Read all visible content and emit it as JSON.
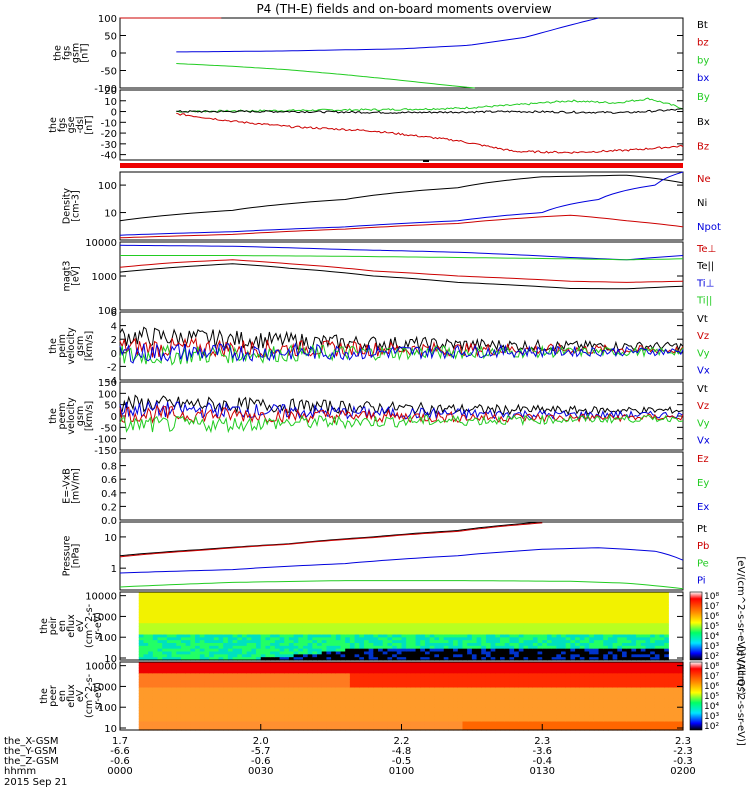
{
  "title": "P4 (TH-E) fields and on-board moments overview",
  "colors": {
    "black": "#000000",
    "red": "#cc0000",
    "green": "#22cc22",
    "blue": "#0000dd"
  },
  "chart_data": [
    {
      "id": "fgs_gsm",
      "type": "line",
      "ylabel": [
        "the",
        "fgs",
        "gsm",
        "[nT]"
      ],
      "ylim": [
        -100,
        100
      ],
      "yscale": "linear",
      "ticks": [
        "100",
        "50",
        "0",
        "-50",
        "-100"
      ],
      "tick_values": [
        100,
        50,
        0,
        -50,
        -100
      ],
      "legend": [
        {
          "label": "Bt",
          "color": "black"
        },
        {
          "label": "bz",
          "color": "red"
        },
        {
          "label": "by",
          "color": "green"
        },
        {
          "label": "bx",
          "color": "blue"
        }
      ],
      "series": [
        {
          "name": "bz",
          "color": "red",
          "x": [
            0,
            0.1,
            0.18
          ],
          "y": [
            100,
            100,
            100
          ]
        },
        {
          "name": "bx",
          "color": "blue",
          "x": [
            0.1,
            0.3,
            0.5,
            0.62,
            0.72,
            0.8,
            0.85
          ],
          "y": [
            3,
            6,
            12,
            22,
            45,
            80,
            100
          ]
        },
        {
          "name": "by",
          "color": "green",
          "x": [
            0.1,
            0.2,
            0.3,
            0.4,
            0.5,
            0.58,
            0.63
          ],
          "y": [
            -30,
            -38,
            -48,
            -62,
            -78,
            -92,
            -100
          ]
        }
      ]
    },
    {
      "id": "fgs_gse",
      "type": "line",
      "ylabel": [
        "the",
        "fgs",
        "gse",
        "-dsl",
        "[nT]"
      ],
      "ylim": [
        -45,
        20
      ],
      "yscale": "linear",
      "ticks": [
        "20",
        "10",
        "0",
        "-10",
        "-20",
        "-30",
        "-40"
      ],
      "tick_values": [
        20,
        10,
        0,
        -10,
        -20,
        -30,
        -40
      ],
      "legend": [
        {
          "label": "By",
          "color": "green"
        },
        {
          "label": "Bx",
          "color": "black"
        },
        {
          "label": "Bz",
          "color": "red"
        }
      ],
      "series": [
        {
          "name": "By",
          "color": "green",
          "x": [
            0.1,
            0.3,
            0.5,
            0.6,
            0.7,
            0.8,
            0.88,
            0.94,
            1.0
          ],
          "y": [
            0,
            1,
            2,
            3,
            6,
            10,
            8,
            12,
            3
          ]
        },
        {
          "name": "Bx",
          "color": "black",
          "x": [
            0.1,
            0.3,
            0.5,
            0.7,
            0.9,
            1.0
          ],
          "y": [
            0,
            0,
            -1,
            0,
            -1,
            2
          ]
        },
        {
          "name": "Bz",
          "color": "red",
          "x": [
            0.1,
            0.2,
            0.3,
            0.45,
            0.6,
            0.7,
            0.8,
            0.9,
            1.0
          ],
          "y": [
            -2,
            -9,
            -14,
            -18,
            -27,
            -37,
            -38,
            -36,
            -32
          ]
        }
      ]
    },
    {
      "id": "density",
      "type": "line",
      "ylabel": [
        "Density",
        "[cm-3]"
      ],
      "ylim": [
        1,
        300
      ],
      "yscale": "log",
      "ticks": [
        "100",
        "10"
      ],
      "tick_values": [
        100,
        10
      ],
      "legend": [
        {
          "label": "Ne",
          "color": "red"
        },
        {
          "label": "Ni",
          "color": "black"
        },
        {
          "label": "Npot",
          "color": "blue"
        }
      ],
      "series": [
        {
          "name": "Ni",
          "color": "black",
          "x": [
            0,
            0.2,
            0.4,
            0.6,
            0.75,
            0.9,
            1.0
          ],
          "y": [
            5,
            12,
            30,
            80,
            200,
            230,
            120
          ]
        },
        {
          "name": "Npot",
          "color": "blue",
          "x": [
            0,
            0.2,
            0.4,
            0.6,
            0.75,
            0.85,
            0.95,
            1.0
          ],
          "y": [
            1.5,
            2,
            3,
            5,
            10,
            30,
            100,
            300
          ]
        },
        {
          "name": "Ne",
          "color": "red",
          "x": [
            0,
            0.2,
            0.4,
            0.6,
            0.7,
            0.8,
            0.9,
            1.0
          ],
          "y": [
            1.2,
            1.6,
            2.5,
            4,
            6,
            8,
            5,
            3
          ]
        }
      ]
    },
    {
      "id": "temperature",
      "type": "line",
      "ylabel": [
        "magt3",
        "[eV]"
      ],
      "ylim": [
        100,
        10000
      ],
      "yscale": "log",
      "ticks": [
        "10000",
        "1000",
        "100"
      ],
      "tick_values": [
        10000,
        1000,
        100
      ],
      "legend": [
        {
          "label": "Te⊥",
          "color": "red"
        },
        {
          "label": "Te||",
          "color": "black"
        },
        {
          "label": "Ti⊥",
          "color": "blue"
        },
        {
          "label": "Ti||",
          "color": "green"
        }
      ],
      "series": [
        {
          "name": "Ti⊥",
          "color": "blue",
          "x": [
            0,
            0.2,
            0.4,
            0.6,
            0.8,
            0.9,
            1.0
          ],
          "y": [
            8000,
            7500,
            6000,
            5000,
            3500,
            3000,
            4000
          ]
        },
        {
          "name": "Ti||",
          "color": "green",
          "x": [
            0,
            0.2,
            0.4,
            0.6,
            0.8,
            0.9,
            1.0
          ],
          "y": [
            4000,
            4000,
            3800,
            3500,
            3200,
            3000,
            3200
          ]
        },
        {
          "name": "Te⊥",
          "color": "red",
          "x": [
            0,
            0.1,
            0.2,
            0.3,
            0.45,
            0.6,
            0.8,
            0.9,
            1.0
          ],
          "y": [
            1800,
            2500,
            3000,
            2300,
            1400,
            1000,
            700,
            650,
            700
          ]
        },
        {
          "name": "Te||",
          "color": "black",
          "x": [
            0,
            0.1,
            0.2,
            0.3,
            0.45,
            0.6,
            0.8,
            0.9,
            1.0
          ],
          "y": [
            1300,
            1800,
            2300,
            1700,
            1000,
            650,
            430,
            420,
            500
          ]
        }
      ]
    },
    {
      "id": "peim_velocity",
      "type": "line",
      "ylabel": [
        "the",
        "peim",
        "velocity",
        "gsm",
        "[km/s]"
      ],
      "ylim": [
        -4,
        6
      ],
      "yscale": "linear",
      "ticks": [
        "6",
        "4",
        "2",
        "0",
        "-2",
        "-4"
      ],
      "tick_values": [
        6,
        4,
        2,
        0,
        -2,
        -4
      ],
      "legend": [
        {
          "label": "Vt",
          "color": "black"
        },
        {
          "label": "Vz",
          "color": "red"
        },
        {
          "label": "Vy",
          "color": "green"
        },
        {
          "label": "Vx",
          "color": "blue"
        }
      ],
      "series": [
        {
          "name": "Vt",
          "color": "black",
          "x": [
            0,
            0.2,
            0.4,
            0.6,
            0.8,
            1.0
          ],
          "y": [
            2.5,
            2,
            1.5,
            1.2,
            1,
            1
          ]
        },
        {
          "name": "Vz",
          "color": "red",
          "x": [
            0,
            0.2,
            0.4,
            0.6,
            0.8,
            1.0
          ],
          "y": [
            0.8,
            0.7,
            0.6,
            0.5,
            0.5,
            0.4
          ]
        },
        {
          "name": "Vy",
          "color": "green",
          "x": [
            0,
            0.2,
            0.4,
            0.6,
            0.8,
            1.0
          ],
          "y": [
            -0.5,
            -0.2,
            0,
            0.1,
            0.1,
            0.2
          ]
        },
        {
          "name": "Vx",
          "color": "blue",
          "x": [
            0,
            0.2,
            0.4,
            0.6,
            0.8,
            1.0
          ],
          "y": [
            0,
            0.1,
            0.1,
            0.2,
            0.2,
            0.2
          ]
        }
      ]
    },
    {
      "id": "peem_velocity",
      "type": "line",
      "ylabel": [
        "the",
        "peem",
        "velocity",
        "gsm",
        "[km/s]"
      ],
      "ylim": [
        -150,
        150
      ],
      "yscale": "linear",
      "ticks": [
        "150",
        "100",
        "50",
        "0",
        "-50",
        "-100",
        "-150"
      ],
      "tick_values": [
        150,
        100,
        50,
        0,
        -50,
        -100,
        -150
      ],
      "legend": [
        {
          "label": "Vt",
          "color": "black"
        },
        {
          "label": "Vz",
          "color": "red"
        },
        {
          "label": "Vy",
          "color": "green"
        },
        {
          "label": "Vx",
          "color": "blue"
        }
      ],
      "series": [
        {
          "name": "Vt",
          "color": "black",
          "x": [
            0,
            0.2,
            0.4,
            0.6,
            0.8,
            1.0
          ],
          "y": [
            55,
            50,
            40,
            30,
            25,
            25
          ]
        },
        {
          "name": "Vx",
          "color": "blue",
          "x": [
            0,
            0.2,
            0.4,
            0.6,
            0.8,
            1.0
          ],
          "y": [
            30,
            25,
            15,
            10,
            5,
            5
          ]
        },
        {
          "name": "Vz",
          "color": "red",
          "x": [
            0,
            0.2,
            0.4,
            0.6,
            0.8,
            1.0
          ],
          "y": [
            10,
            5,
            0,
            -5,
            -8,
            -5
          ]
        },
        {
          "name": "Vy",
          "color": "green",
          "x": [
            0,
            0.2,
            0.4,
            0.6,
            0.8,
            1.0
          ],
          "y": [
            -40,
            -35,
            -25,
            -20,
            -15,
            -10
          ]
        }
      ]
    },
    {
      "id": "efield",
      "type": "line",
      "ylabel": [
        "E=-VxB",
        "[mV/m]"
      ],
      "ylim": [
        0,
        1
      ],
      "yscale": "linear",
      "ticks": [
        "0.8",
        "0.6",
        "0.4",
        "0.2",
        "0.0"
      ],
      "tick_values": [
        0.8,
        0.6,
        0.4,
        0.2,
        0.0
      ],
      "legend": [
        {
          "label": "Ez",
          "color": "red"
        },
        {
          "label": "Ey",
          "color": "green"
        },
        {
          "label": "Ex",
          "color": "blue"
        }
      ],
      "series": []
    },
    {
      "id": "pressure",
      "type": "line",
      "ylabel": [
        "Pressure",
        "[nPa]"
      ],
      "ylim": [
        0.2,
        30
      ],
      "yscale": "log",
      "ticks": [
        "10",
        "1"
      ],
      "tick_values": [
        10,
        1
      ],
      "legend": [
        {
          "label": "Pt",
          "color": "black"
        },
        {
          "label": "Pb",
          "color": "red"
        },
        {
          "label": "Pe",
          "color": "green"
        },
        {
          "label": "Pi",
          "color": "blue"
        }
      ],
      "series": [
        {
          "name": "Pt",
          "color": "black",
          "x": [
            0,
            0.15,
            0.3,
            0.45,
            0.6,
            0.75
          ],
          "y": [
            2.5,
            4,
            6,
            10,
            16,
            30
          ]
        },
        {
          "name": "Pb",
          "color": "red",
          "x": [
            0,
            0.15,
            0.3,
            0.45,
            0.6,
            0.75
          ],
          "y": [
            2.3,
            3.8,
            5.8,
            9.5,
            15,
            28
          ]
        },
        {
          "name": "Pi",
          "color": "blue",
          "x": [
            0,
            0.2,
            0.4,
            0.6,
            0.75,
            0.85,
            0.95,
            1.0
          ],
          "y": [
            0.7,
            0.9,
            1.4,
            2.5,
            4,
            4.5,
            3.5,
            1.8
          ]
        },
        {
          "name": "Pe",
          "color": "green",
          "x": [
            0,
            0.2,
            0.4,
            0.6,
            0.8,
            0.9,
            1.0
          ],
          "y": [
            0.25,
            0.35,
            0.4,
            0.4,
            0.38,
            0.33,
            0.22
          ]
        }
      ]
    },
    {
      "id": "peir_spectrogram",
      "type": "heatmap",
      "ylabel": [
        "the",
        "peir",
        "en",
        "eflux",
        "eV",
        "(cm^2-s-",
        "sr-eV)"
      ],
      "yscale": "log",
      "ylim": [
        8,
        15000
      ],
      "ticks": [
        "10000",
        "1000",
        "100",
        "10"
      ],
      "tick_values": [
        10000,
        1000,
        100,
        10
      ],
      "colorbar": {
        "ticks": [
          "10⁸",
          "10⁷",
          "10⁶",
          "10⁵",
          "10⁴",
          "10³",
          "10²"
        ],
        "label": "[eV/(cm^2-s-sr-eV)] (All Qs)"
      }
    },
    {
      "id": "peer_spectrogram",
      "type": "heatmap",
      "ylabel": [
        "the",
        "peer",
        "en",
        "eflux",
        "eV",
        "(cm^2-s-",
        "sr-eV)"
      ],
      "yscale": "log",
      "ylim": [
        8,
        15000
      ],
      "ticks": [
        "10000",
        "1000",
        "100",
        "10"
      ],
      "tick_values": [
        10000,
        1000,
        100,
        10
      ],
      "colorbar": {
        "ticks": [
          "10⁸",
          "10⁷",
          "10⁶",
          "10⁵",
          "10⁴",
          "10³",
          "10²"
        ],
        "label": "[eV/(cm^2-s-sr-eV)]"
      }
    }
  ],
  "xaxis": {
    "tick_positions": [
      0,
      0.25,
      0.5,
      0.75,
      1.0
    ],
    "rows": [
      {
        "label": "the_X-GSM",
        "values": [
          "1.7",
          "2.0",
          "2.2",
          "2.3",
          "2.3"
        ]
      },
      {
        "label": "the_Y-GSM",
        "values": [
          "-6.6",
          "-5.7",
          "-4.8",
          "-3.6",
          "-2.3"
        ]
      },
      {
        "label": "the_Z-GSM",
        "values": [
          "-0.6",
          "-0.6",
          "-0.5",
          "-0.4",
          "-0.3"
        ]
      },
      {
        "label": "hhmm",
        "values": [
          "0000",
          "0030",
          "0100",
          "0130",
          "0200"
        ]
      }
    ],
    "date": "2015 Sep 21"
  },
  "mode_bar_label": ""
}
